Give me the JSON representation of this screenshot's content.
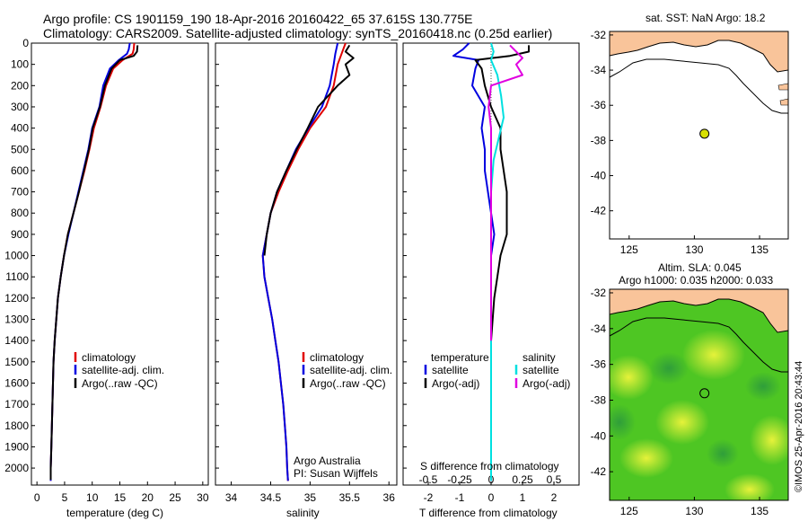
{
  "header": {
    "title_line1": "Argo profile: CS 1901159_190 18-Apr-2016 20160422_65 37.615S 130.775E",
    "title_line2": "Climatology: CARS2009. Satellite-adjusted climatology: synTS_20160418.nc (0.25d earlier)"
  },
  "colors": {
    "climatology": "#e00000",
    "satellite": "#0000e0",
    "argo": "#000000",
    "sal_satellite": "#00e0e0",
    "sal_argo": "#e000e0",
    "land": "#f9c49a",
    "sla_ocean": "#3fc21f",
    "marker": "#d8e000"
  },
  "legends": {
    "temp_panel": [
      "climatology",
      "satellite-adj. clim.",
      "Argo(..raw -QC)"
    ],
    "sal_panel": [
      "climatology",
      "satellite-adj. clim.",
      "Argo(..raw -QC)"
    ],
    "diff_panel": {
      "temp_header": "temperature",
      "sal_header": "salinity",
      "temp_items": [
        "satellite",
        "Argo(-adj)"
      ],
      "sal_items": [
        "satellite",
        "Argo(-adj)"
      ]
    }
  },
  "credits": {
    "institution": "Argo Australia",
    "pi": "PI: Susan Wijffels",
    "imos": "©IMOS 25-Apr-2016 20:43:44"
  },
  "maps": {
    "sst_title": "sat. SST: NaN Argo: 18.2",
    "sla_title_line1": "Altim. SLA: 0.045",
    "sla_title_line2": "Argo h1000: 0.035 h2000: 0.033",
    "lon_ticks": [
      "125",
      "130",
      "135"
    ],
    "lat_ticks": [
      "-32",
      "-34",
      "-36",
      "-38",
      "-40",
      "-42"
    ],
    "argo_position": {
      "lon": 130.775,
      "lat": -37.615
    }
  },
  "chart_data": [
    {
      "type": "line",
      "panel": "temperature",
      "xlabel": "temperature (deg C)",
      "ylabel": "",
      "xlim": [
        -1,
        31
      ],
      "ylim": [
        2080,
        0
      ],
      "x_ticks": [
        "0",
        "5",
        "10",
        "15",
        "20",
        "25",
        "30"
      ],
      "y_ticks": [
        "0",
        "100",
        "200",
        "300",
        "400",
        "500",
        "600",
        "700",
        "800",
        "900",
        "1000",
        "1100",
        "1200",
        "1300",
        "1400",
        "1500",
        "1600",
        "1700",
        "1800",
        "1900",
        "2000"
      ],
      "series": [
        {
          "name": "climatology",
          "points": [
            [
              17.6,
              0
            ],
            [
              17.5,
              30
            ],
            [
              17.3,
              50
            ],
            [
              15.5,
              80
            ],
            [
              13.8,
              120
            ],
            [
              12.5,
              200
            ],
            [
              11.5,
              300
            ],
            [
              10.3,
              400
            ],
            [
              9.5,
              500
            ],
            [
              8.6,
              600
            ],
            [
              7.6,
              700
            ],
            [
              6.6,
              800
            ],
            [
              5.6,
              900
            ],
            [
              4.9,
              1000
            ],
            [
              4.3,
              1100
            ],
            [
              3.8,
              1200
            ],
            [
              3.5,
              1300
            ],
            [
              3.2,
              1400
            ],
            [
              3.0,
              1500
            ],
            [
              2.9,
              1600
            ],
            [
              2.8,
              1700
            ],
            [
              2.7,
              1800
            ],
            [
              2.6,
              1900
            ],
            [
              2.5,
              2000
            ],
            [
              2.5,
              2060
            ]
          ]
        },
        {
          "name": "satellite-adj. clim.",
          "points": [
            [
              16.8,
              0
            ],
            [
              16.6,
              30
            ],
            [
              16.3,
              50
            ],
            [
              14.8,
              80
            ],
            [
              13.2,
              120
            ],
            [
              12.0,
              200
            ],
            [
              11.3,
              300
            ],
            [
              10.0,
              400
            ],
            [
              9.3,
              500
            ],
            [
              8.4,
              600
            ],
            [
              7.5,
              700
            ],
            [
              6.6,
              800
            ],
            [
              5.7,
              900
            ],
            [
              4.9,
              1000
            ],
            [
              4.3,
              1100
            ],
            [
              3.8,
              1200
            ],
            [
              3.5,
              1300
            ],
            [
              3.2,
              1400
            ],
            [
              3.0,
              1500
            ],
            [
              2.9,
              1600
            ],
            [
              2.8,
              1700
            ],
            [
              2.7,
              1800
            ],
            [
              2.6,
              1900
            ],
            [
              2.5,
              2000
            ],
            [
              2.5,
              2060
            ]
          ]
        },
        {
          "name": "Argo(..raw -QC)",
          "points": [
            [
              18.2,
              10
            ],
            [
              18.1,
              40
            ],
            [
              17.5,
              60
            ],
            [
              15.0,
              80
            ],
            [
              13.5,
              120
            ],
            [
              12.3,
              200
            ],
            [
              11.4,
              300
            ],
            [
              10.1,
              400
            ],
            [
              9.4,
              500
            ],
            [
              8.5,
              600
            ],
            [
              7.6,
              700
            ],
            [
              6.6,
              800
            ],
            [
              5.6,
              900
            ],
            [
              4.9,
              1000
            ],
            [
              4.3,
              1100
            ],
            [
              3.8,
              1200
            ],
            [
              3.5,
              1300
            ],
            [
              3.2,
              1400
            ],
            [
              3.0,
              1500
            ],
            [
              2.9,
              1600
            ],
            [
              2.8,
              1700
            ],
            [
              2.7,
              1800
            ],
            [
              2.6,
              1900
            ],
            [
              2.5,
              2000
            ],
            [
              2.5,
              2055
            ]
          ]
        }
      ]
    },
    {
      "type": "line",
      "panel": "salinity",
      "xlabel": "salinity",
      "ylabel": "",
      "xlim": [
        33.8,
        36.1
      ],
      "ylim": [
        2080,
        0
      ],
      "x_ticks": [
        "34",
        "34.5",
        "35",
        "35.5",
        "36"
      ],
      "series": [
        {
          "name": "climatology",
          "points": [
            [
              35.45,
              0
            ],
            [
              35.4,
              50
            ],
            [
              35.35,
              100
            ],
            [
              35.3,
              200
            ],
            [
              35.2,
              300
            ],
            [
              35.0,
              400
            ],
            [
              34.85,
              500
            ],
            [
              34.72,
              600
            ],
            [
              34.6,
              700
            ],
            [
              34.5,
              800
            ],
            [
              34.45,
              900
            ],
            [
              34.4,
              1000
            ],
            [
              34.42,
              1100
            ],
            [
              34.47,
              1200
            ],
            [
              34.52,
              1300
            ],
            [
              34.56,
              1400
            ],
            [
              34.6,
              1500
            ],
            [
              34.63,
              1600
            ],
            [
              34.66,
              1700
            ],
            [
              34.68,
              1800
            ],
            [
              34.7,
              1900
            ],
            [
              34.71,
              2000
            ],
            [
              34.72,
              2060
            ]
          ]
        },
        {
          "name": "satellite-adj. clim.",
          "points": [
            [
              35.35,
              0
            ],
            [
              35.32,
              50
            ],
            [
              35.3,
              100
            ],
            [
              35.25,
              200
            ],
            [
              35.15,
              300
            ],
            [
              34.98,
              400
            ],
            [
              34.82,
              500
            ],
            [
              34.7,
              600
            ],
            [
              34.58,
              700
            ],
            [
              34.5,
              800
            ],
            [
              34.45,
              900
            ],
            [
              34.4,
              1000
            ],
            [
              34.42,
              1100
            ],
            [
              34.47,
              1200
            ],
            [
              34.52,
              1300
            ],
            [
              34.56,
              1400
            ],
            [
              34.6,
              1500
            ],
            [
              34.63,
              1600
            ],
            [
              34.66,
              1700
            ],
            [
              34.68,
              1800
            ],
            [
              34.7,
              1900
            ],
            [
              34.71,
              2000
            ],
            [
              34.72,
              2060
            ]
          ]
        },
        {
          "name": "Argo(..raw -QC)",
          "points": [
            [
              35.5,
              10
            ],
            [
              35.45,
              40
            ],
            [
              35.55,
              70
            ],
            [
              35.45,
              100
            ],
            [
              35.5,
              150
            ],
            [
              35.35,
              200
            ],
            [
              35.1,
              300
            ],
            [
              34.97,
              400
            ],
            [
              34.83,
              500
            ],
            [
              34.7,
              600
            ],
            [
              34.58,
              700
            ],
            [
              34.5,
              800
            ],
            [
              34.45,
              900
            ],
            [
              34.42,
              1000
            ]
          ]
        }
      ]
    },
    {
      "type": "line",
      "panel": "difference",
      "xlabel": "T difference from climatology",
      "xlabel_top": "S difference from climatology",
      "ylabel": "",
      "xlim": [
        -2.8,
        2.8
      ],
      "ylim": [
        2080,
        0
      ],
      "x_ticks": [
        "-2",
        "-1",
        "0",
        "1",
        "2"
      ],
      "x_ticks_s": [
        "-0.5",
        "-0.25",
        "0",
        "0.25",
        "0.5"
      ],
      "series": [
        {
          "name": "satellite",
          "quantity": "temperature",
          "points": [
            [
              -0.7,
              0
            ],
            [
              -0.9,
              30
            ],
            [
              -1.2,
              60
            ],
            [
              -0.4,
              80
            ],
            [
              -0.5,
              120
            ],
            [
              -0.6,
              200
            ],
            [
              -0.2,
              300
            ],
            [
              -0.3,
              400
            ],
            [
              -0.2,
              500
            ],
            [
              -0.2,
              600
            ],
            [
              -0.1,
              700
            ],
            [
              0.0,
              800
            ],
            [
              0.1,
              900
            ],
            [
              0.0,
              1000
            ],
            [
              0.0,
              1100
            ],
            [
              0.0,
              1200
            ],
            [
              0.0,
              1400
            ],
            [
              0.0,
              2060
            ]
          ]
        },
        {
          "name": "Argo(-adj)",
          "quantity": "temperature",
          "points": [
            [
              1.2,
              10
            ],
            [
              1.2,
              40
            ],
            [
              0.6,
              60
            ],
            [
              -0.5,
              80
            ],
            [
              -0.3,
              120
            ],
            [
              -0.2,
              200
            ],
            [
              0.0,
              300
            ],
            [
              0.3,
              400
            ],
            [
              0.3,
              500
            ],
            [
              0.4,
              600
            ],
            [
              0.5,
              700
            ],
            [
              0.5,
              800
            ],
            [
              0.5,
              900
            ],
            [
              0.3,
              1000
            ],
            [
              0.2,
              1100
            ],
            [
              0.1,
              1200
            ],
            [
              0.0,
              1400
            ],
            [
              0.0,
              2055
            ]
          ]
        },
        {
          "name": "satellite",
          "quantity": "salinity",
          "points": [
            [
              0.0,
              0
            ],
            [
              0.02,
              40
            ],
            [
              0.0,
              80
            ],
            [
              0.05,
              150
            ],
            [
              0.08,
              250
            ],
            [
              0.1,
              350
            ],
            [
              0.06,
              450
            ],
            [
              0.02,
              550
            ],
            [
              0.0,
              700
            ],
            [
              0.0,
              900
            ],
            [
              0.0,
              1100
            ],
            [
              0.0,
              1500
            ],
            [
              0.0,
              2060
            ]
          ]
        },
        {
          "name": "Argo(-adj)",
          "quantity": "salinity",
          "points": [
            [
              0.15,
              10
            ],
            [
              0.2,
              40
            ],
            [
              0.25,
              70
            ],
            [
              0.2,
              100
            ],
            [
              0.25,
              150
            ],
            [
              0.0,
              200
            ],
            [
              -0.02,
              300
            ],
            [
              0.0,
              400
            ],
            [
              0.0,
              500
            ],
            [
              0.0,
              600
            ],
            [
              0.0,
              700
            ],
            [
              0.0,
              800
            ],
            [
              0.0,
              900
            ],
            [
              0.0,
              1000
            ],
            [
              0.0,
              1200
            ],
            [
              0.0,
              1400
            ]
          ]
        }
      ]
    }
  ]
}
